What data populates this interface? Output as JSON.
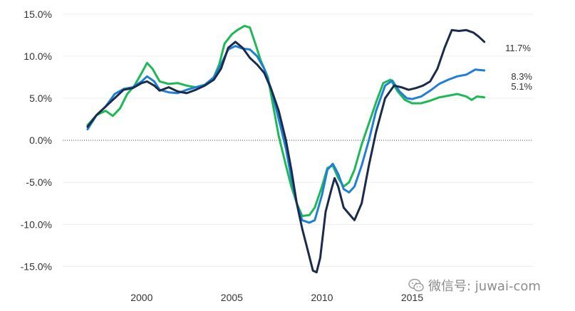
{
  "chart_data": {
    "type": "line",
    "title": "",
    "xlabel": "",
    "ylabel": "",
    "xlim": [
      1995.7,
      2021.7
    ],
    "ylim": [
      -17,
      16
    ],
    "y_ticks": [
      15,
      10,
      5,
      0,
      -5,
      -10,
      -15
    ],
    "y_tick_labels": [
      "15.0%",
      "10.0%",
      "5.0%",
      "0.0%",
      "-5.0%",
      "-10.0%",
      "-15.0%"
    ],
    "x_ticks": [
      2000,
      2005,
      2010,
      2015
    ],
    "x_tick_labels": [
      "2000",
      "2005",
      "2010",
      "2015"
    ],
    "grid": "horizontal",
    "zero_line": "dotted",
    "series": [
      {
        "name": "green",
        "color": "#1db954",
        "end_label": "5.1%",
        "points": [
          [
            1997.0,
            1.8
          ],
          [
            1997.5,
            3.0
          ],
          [
            1998.0,
            3.5
          ],
          [
            1998.4,
            2.9
          ],
          [
            1998.8,
            3.8
          ],
          [
            1999.2,
            5.5
          ],
          [
            1999.6,
            6.5
          ],
          [
            2000.0,
            8.0
          ],
          [
            2000.3,
            9.2
          ],
          [
            2000.6,
            8.5
          ],
          [
            2001.0,
            7.0
          ],
          [
            2001.5,
            6.7
          ],
          [
            2002.0,
            6.8
          ],
          [
            2002.5,
            6.5
          ],
          [
            2003.0,
            6.3
          ],
          [
            2003.5,
            6.5
          ],
          [
            2004.0,
            7.5
          ],
          [
            2004.3,
            9.0
          ],
          [
            2004.6,
            11.5
          ],
          [
            2005.0,
            12.6
          ],
          [
            2005.3,
            13.1
          ],
          [
            2005.7,
            13.6
          ],
          [
            2006.0,
            13.4
          ],
          [
            2006.3,
            11.5
          ],
          [
            2006.6,
            9.5
          ],
          [
            2007.0,
            7.5
          ],
          [
            2007.3,
            4.0
          ],
          [
            2007.6,
            0.5
          ],
          [
            2008.0,
            -3.0
          ],
          [
            2008.3,
            -5.5
          ],
          [
            2008.6,
            -7.5
          ],
          [
            2008.9,
            -9.0
          ],
          [
            2009.3,
            -8.9
          ],
          [
            2009.6,
            -8.0
          ],
          [
            2010.0,
            -5.5
          ],
          [
            2010.3,
            -3.3
          ],
          [
            2010.6,
            -3.0
          ],
          [
            2010.9,
            -4.5
          ],
          [
            2011.2,
            -5.5
          ],
          [
            2011.5,
            -5.0
          ],
          [
            2011.8,
            -3.5
          ],
          [
            2012.2,
            -0.5
          ],
          [
            2012.6,
            2.0
          ],
          [
            2013.0,
            4.5
          ],
          [
            2013.4,
            6.8
          ],
          [
            2013.8,
            7.2
          ],
          [
            2014.2,
            5.8
          ],
          [
            2014.6,
            4.8
          ],
          [
            2015.0,
            4.4
          ],
          [
            2015.5,
            4.4
          ],
          [
            2016.0,
            4.7
          ],
          [
            2016.5,
            5.1
          ],
          [
            2017.0,
            5.3
          ],
          [
            2017.5,
            5.5
          ],
          [
            2018.0,
            5.2
          ],
          [
            2018.3,
            4.8
          ],
          [
            2018.6,
            5.2
          ],
          [
            2019.0,
            5.1
          ]
        ]
      },
      {
        "name": "blue",
        "color": "#1e7fd6",
        "end_label": "8.3%",
        "points": [
          [
            1997.0,
            1.3
          ],
          [
            1997.5,
            3.0
          ],
          [
            1998.0,
            4.0
          ],
          [
            1998.5,
            5.5
          ],
          [
            1999.0,
            6.1
          ],
          [
            1999.5,
            6.3
          ],
          [
            2000.0,
            7.0
          ],
          [
            2000.3,
            7.6
          ],
          [
            2000.7,
            7.0
          ],
          [
            2001.0,
            6.0
          ],
          [
            2001.5,
            5.7
          ],
          [
            2002.0,
            5.6
          ],
          [
            2002.5,
            6.0
          ],
          [
            2003.0,
            6.3
          ],
          [
            2003.5,
            6.6
          ],
          [
            2004.0,
            7.5
          ],
          [
            2004.4,
            9.0
          ],
          [
            2004.8,
            10.8
          ],
          [
            2005.2,
            11.2
          ],
          [
            2005.6,
            10.9
          ],
          [
            2006.0,
            10.8
          ],
          [
            2006.4,
            10.0
          ],
          [
            2006.8,
            8.5
          ],
          [
            2007.2,
            6.0
          ],
          [
            2007.6,
            2.5
          ],
          [
            2008.0,
            -1.0
          ],
          [
            2008.3,
            -4.5
          ],
          [
            2008.6,
            -7.5
          ],
          [
            2008.9,
            -9.5
          ],
          [
            2009.3,
            -9.8
          ],
          [
            2009.6,
            -9.5
          ],
          [
            2010.0,
            -6.5
          ],
          [
            2010.3,
            -3.5
          ],
          [
            2010.6,
            -2.8
          ],
          [
            2010.9,
            -4.0
          ],
          [
            2011.2,
            -5.8
          ],
          [
            2011.5,
            -6.2
          ],
          [
            2011.8,
            -5.5
          ],
          [
            2012.2,
            -3.0
          ],
          [
            2012.6,
            0.0
          ],
          [
            2013.0,
            3.5
          ],
          [
            2013.5,
            6.5
          ],
          [
            2013.9,
            7.1
          ],
          [
            2014.3,
            5.8
          ],
          [
            2014.7,
            5.0
          ],
          [
            2015.0,
            4.9
          ],
          [
            2015.5,
            5.2
          ],
          [
            2016.0,
            5.9
          ],
          [
            2016.5,
            6.7
          ],
          [
            2017.0,
            7.2
          ],
          [
            2017.5,
            7.6
          ],
          [
            2018.0,
            7.8
          ],
          [
            2018.5,
            8.4
          ],
          [
            2019.0,
            8.3
          ]
        ]
      },
      {
        "name": "navy",
        "color": "#1b2b4b",
        "end_label": "11.7%",
        "points": [
          [
            1997.0,
            1.6
          ],
          [
            1997.5,
            3.0
          ],
          [
            1998.0,
            4.0
          ],
          [
            1998.5,
            5.0
          ],
          [
            1999.0,
            6.0
          ],
          [
            1999.5,
            6.2
          ],
          [
            2000.0,
            6.8
          ],
          [
            2000.3,
            7.0
          ],
          [
            2000.7,
            6.5
          ],
          [
            2001.0,
            5.9
          ],
          [
            2001.5,
            6.3
          ],
          [
            2002.0,
            5.8
          ],
          [
            2002.5,
            5.6
          ],
          [
            2003.0,
            6.0
          ],
          [
            2003.5,
            6.5
          ],
          [
            2004.0,
            7.2
          ],
          [
            2004.4,
            8.5
          ],
          [
            2004.8,
            11.0
          ],
          [
            2005.2,
            11.7
          ],
          [
            2005.6,
            11.0
          ],
          [
            2006.0,
            9.8
          ],
          [
            2006.4,
            9.0
          ],
          [
            2006.8,
            8.0
          ],
          [
            2007.2,
            6.0
          ],
          [
            2007.6,
            3.5
          ],
          [
            2008.0,
            0.0
          ],
          [
            2008.3,
            -3.5
          ],
          [
            2008.6,
            -7.5
          ],
          [
            2008.9,
            -10.5
          ],
          [
            2009.2,
            -13.0
          ],
          [
            2009.5,
            -15.5
          ],
          [
            2009.7,
            -15.7
          ],
          [
            2009.9,
            -14.0
          ],
          [
            2010.2,
            -8.5
          ],
          [
            2010.5,
            -6.0
          ],
          [
            2010.7,
            -4.5
          ],
          [
            2010.9,
            -5.5
          ],
          [
            2011.2,
            -8.0
          ],
          [
            2011.6,
            -9.0
          ],
          [
            2011.8,
            -9.5
          ],
          [
            2012.2,
            -7.5
          ],
          [
            2012.6,
            -3.0
          ],
          [
            2013.0,
            1.0
          ],
          [
            2013.5,
            5.0
          ],
          [
            2014.0,
            6.5
          ],
          [
            2014.4,
            6.3
          ],
          [
            2014.8,
            6.0
          ],
          [
            2015.2,
            6.2
          ],
          [
            2015.6,
            6.5
          ],
          [
            2016.0,
            7.0
          ],
          [
            2016.4,
            8.5
          ],
          [
            2016.8,
            11.0
          ],
          [
            2017.2,
            13.1
          ],
          [
            2017.6,
            13.0
          ],
          [
            2018.0,
            13.1
          ],
          [
            2018.4,
            12.8
          ],
          [
            2018.7,
            12.3
          ],
          [
            2019.0,
            11.7
          ]
        ]
      }
    ]
  },
  "watermark": {
    "text": "微信号: juwai-com",
    "icon": "wechat-icon"
  }
}
